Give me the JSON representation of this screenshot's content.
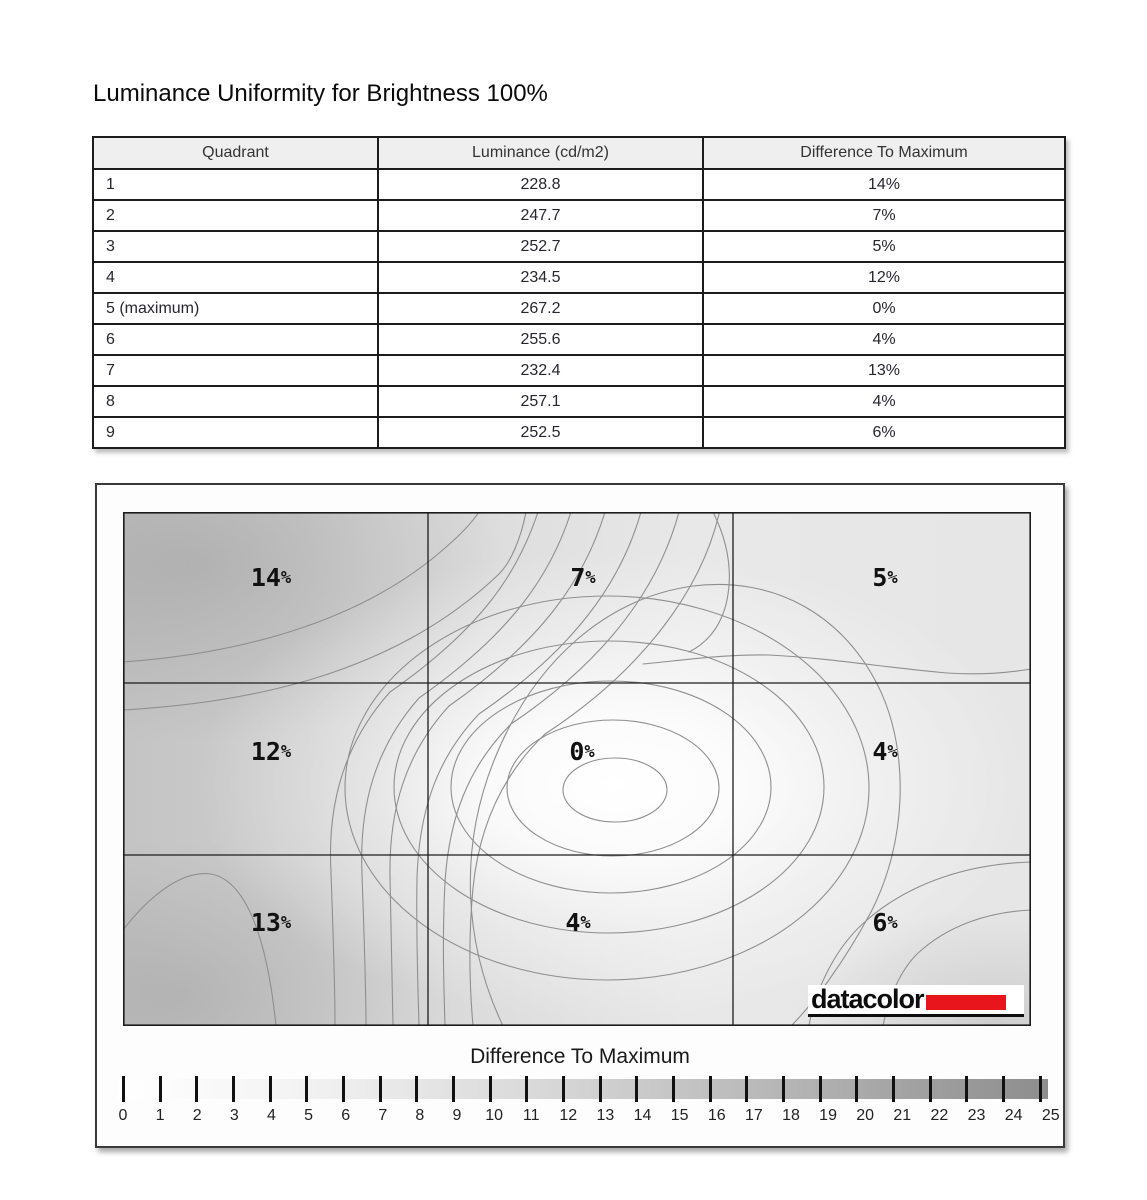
{
  "title": "Luminance Uniformity for Brightness 100%",
  "table": {
    "headers": [
      "Quadrant",
      "Luminance (cd/m2)",
      "Difference To Maximum"
    ],
    "rows": [
      {
        "q": "1",
        "lum": "228.8",
        "diff": "14%"
      },
      {
        "q": "2",
        "lum": "247.7",
        "diff": "7%"
      },
      {
        "q": "3",
        "lum": "252.7",
        "diff": "5%"
      },
      {
        "q": "4",
        "lum": "234.5",
        "diff": "12%"
      },
      {
        "q": "5 (maximum)",
        "lum": "267.2",
        "diff": "0%"
      },
      {
        "q": "6",
        "lum": "255.6",
        "diff": "4%"
      },
      {
        "q": "7",
        "lum": "232.4",
        "diff": "13%"
      },
      {
        "q": "8",
        "lum": "257.1",
        "diff": "4%"
      },
      {
        "q": "9",
        "lum": "252.5",
        "diff": "6%"
      }
    ]
  },
  "map": {
    "cells": [
      {
        "num": "14",
        "sym": "%"
      },
      {
        "num": "7",
        "sym": "%"
      },
      {
        "num": "5",
        "sym": "%"
      },
      {
        "num": "12",
        "sym": "%"
      },
      {
        "num": "0",
        "sym": "%"
      },
      {
        "num": "4",
        "sym": "%"
      },
      {
        "num": "13",
        "sym": "%"
      },
      {
        "num": "4",
        "sym": "%"
      },
      {
        "num": "6",
        "sym": "%"
      }
    ],
    "logo_text": "datacolor"
  },
  "scale": {
    "title": "Difference To Maximum",
    "ticks": [
      "0",
      "1",
      "2",
      "3",
      "4",
      "5",
      "6",
      "7",
      "8",
      "9",
      "10",
      "11",
      "12",
      "13",
      "14",
      "15",
      "16",
      "17",
      "18",
      "19",
      "20",
      "21",
      "22",
      "23",
      "24",
      "25"
    ]
  },
  "colors": {
    "logo_red": "#e8151c",
    "map_dark": "#c4c4c4",
    "map_light": "#ffffff",
    "contour_line": "#8f8f8f"
  },
  "chart_data": {
    "type": "heatmap",
    "title": "Luminance Uniformity for Brightness 100%",
    "table": {
      "headers": [
        "Quadrant",
        "Luminance (cd/m2)",
        "Difference To Maximum"
      ],
      "rows": [
        [
          "1",
          228.8,
          "14%"
        ],
        [
          "2",
          247.7,
          "7%"
        ],
        [
          "3",
          252.7,
          "5%"
        ],
        [
          "4",
          234.5,
          "12%"
        ],
        [
          "5 (maximum)",
          267.2,
          "0%"
        ],
        [
          "6",
          255.6,
          "4%"
        ],
        [
          "7",
          232.4,
          "13%"
        ],
        [
          "8",
          257.1,
          "4%"
        ],
        [
          "9",
          252.5,
          "6%"
        ]
      ]
    },
    "grid_difference_percent": [
      [
        14,
        7,
        5
      ],
      [
        12,
        0,
        4
      ],
      [
        13,
        4,
        6
      ]
    ],
    "maximum_quadrant": 5,
    "colorbar": {
      "label": "Difference To Maximum",
      "min": 0,
      "max": 25,
      "tick_step": 1,
      "style": "white-to-gray"
    }
  }
}
